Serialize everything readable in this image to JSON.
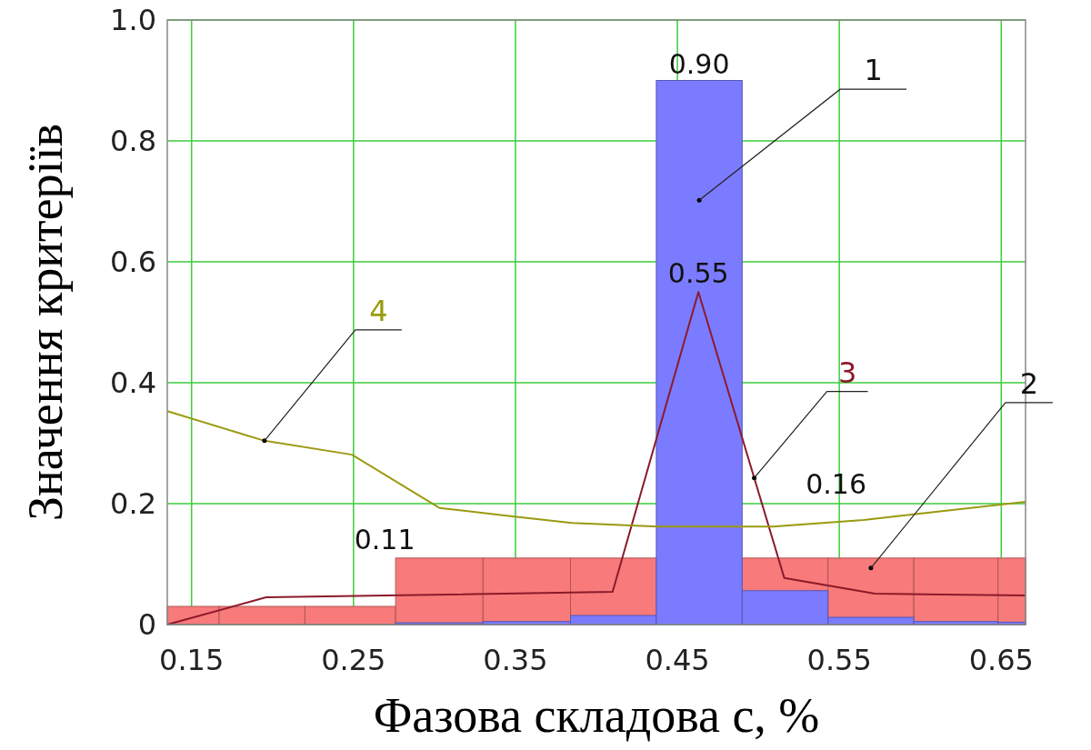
{
  "chart_data": {
    "type": "line",
    "xlabel": "Фазова складова с, %",
    "ylabel": "Значення критеріїв",
    "xlim": [
      0.135,
      0.665
    ],
    "ylim": [
      0,
      1
    ],
    "xticks": [
      0.15,
      0.25,
      0.35,
      0.45,
      0.55,
      0.65
    ],
    "yticks": [
      0,
      0.2,
      0.4,
      0.6,
      0.8,
      {
        "value": 1,
        "label": "1.0"
      }
    ],
    "grid": true,
    "series": [
      {
        "name": "1",
        "type": "histogram",
        "color": "#7b7bff",
        "bins": [
          0.276,
          0.33,
          0.384,
          0.437,
          0.49,
          0.543,
          0.596,
          0.648,
          0.665
        ],
        "values": [
          0.003,
          0.005,
          0.015,
          0.9,
          0.056,
          0.012,
          0.005,
          0.004
        ]
      },
      {
        "name": "2",
        "type": "histogram",
        "color": "#f87a7a",
        "bins": [
          0.135,
          0.167,
          0.22,
          0.276,
          0.33,
          0.384,
          0.437,
          0.49,
          0.543,
          0.596,
          0.648,
          0.665
        ],
        "values": [
          0.03,
          0.03,
          0.03,
          0.11,
          0.11,
          0.11,
          null,
          0.11,
          0.11,
          0.11,
          0.11
        ]
      },
      {
        "name": "3",
        "color": "#8b1a2a",
        "x": [
          0.135,
          0.196,
          0.41,
          0.463,
          0.516,
          0.572,
          0.665
        ],
        "values": [
          0,
          0.045,
          0.054,
          0.55,
          0.077,
          0.051,
          0.048
        ]
      },
      {
        "name": "4",
        "color": "#9a9a10",
        "x": [
          0.135,
          0.195,
          0.249,
          0.303,
          0.348,
          0.385,
          0.438,
          0.509,
          0.565,
          0.665
        ],
        "values": [
          0.353,
          0.304,
          0.281,
          0.193,
          0.179,
          0.168,
          0.162,
          0.162,
          0.173,
          0.203
        ]
      }
    ],
    "annotations": [
      {
        "text": "0.90",
        "x": 0.4635,
        "y": 0.9
      },
      {
        "text": "0.55",
        "x": 0.463,
        "y": 0.55
      },
      {
        "text": "0.16",
        "x": 0.548,
        "y": 0.168
      },
      {
        "text": "0.11",
        "x": 0.276,
        "y": 0.11
      }
    ]
  }
}
